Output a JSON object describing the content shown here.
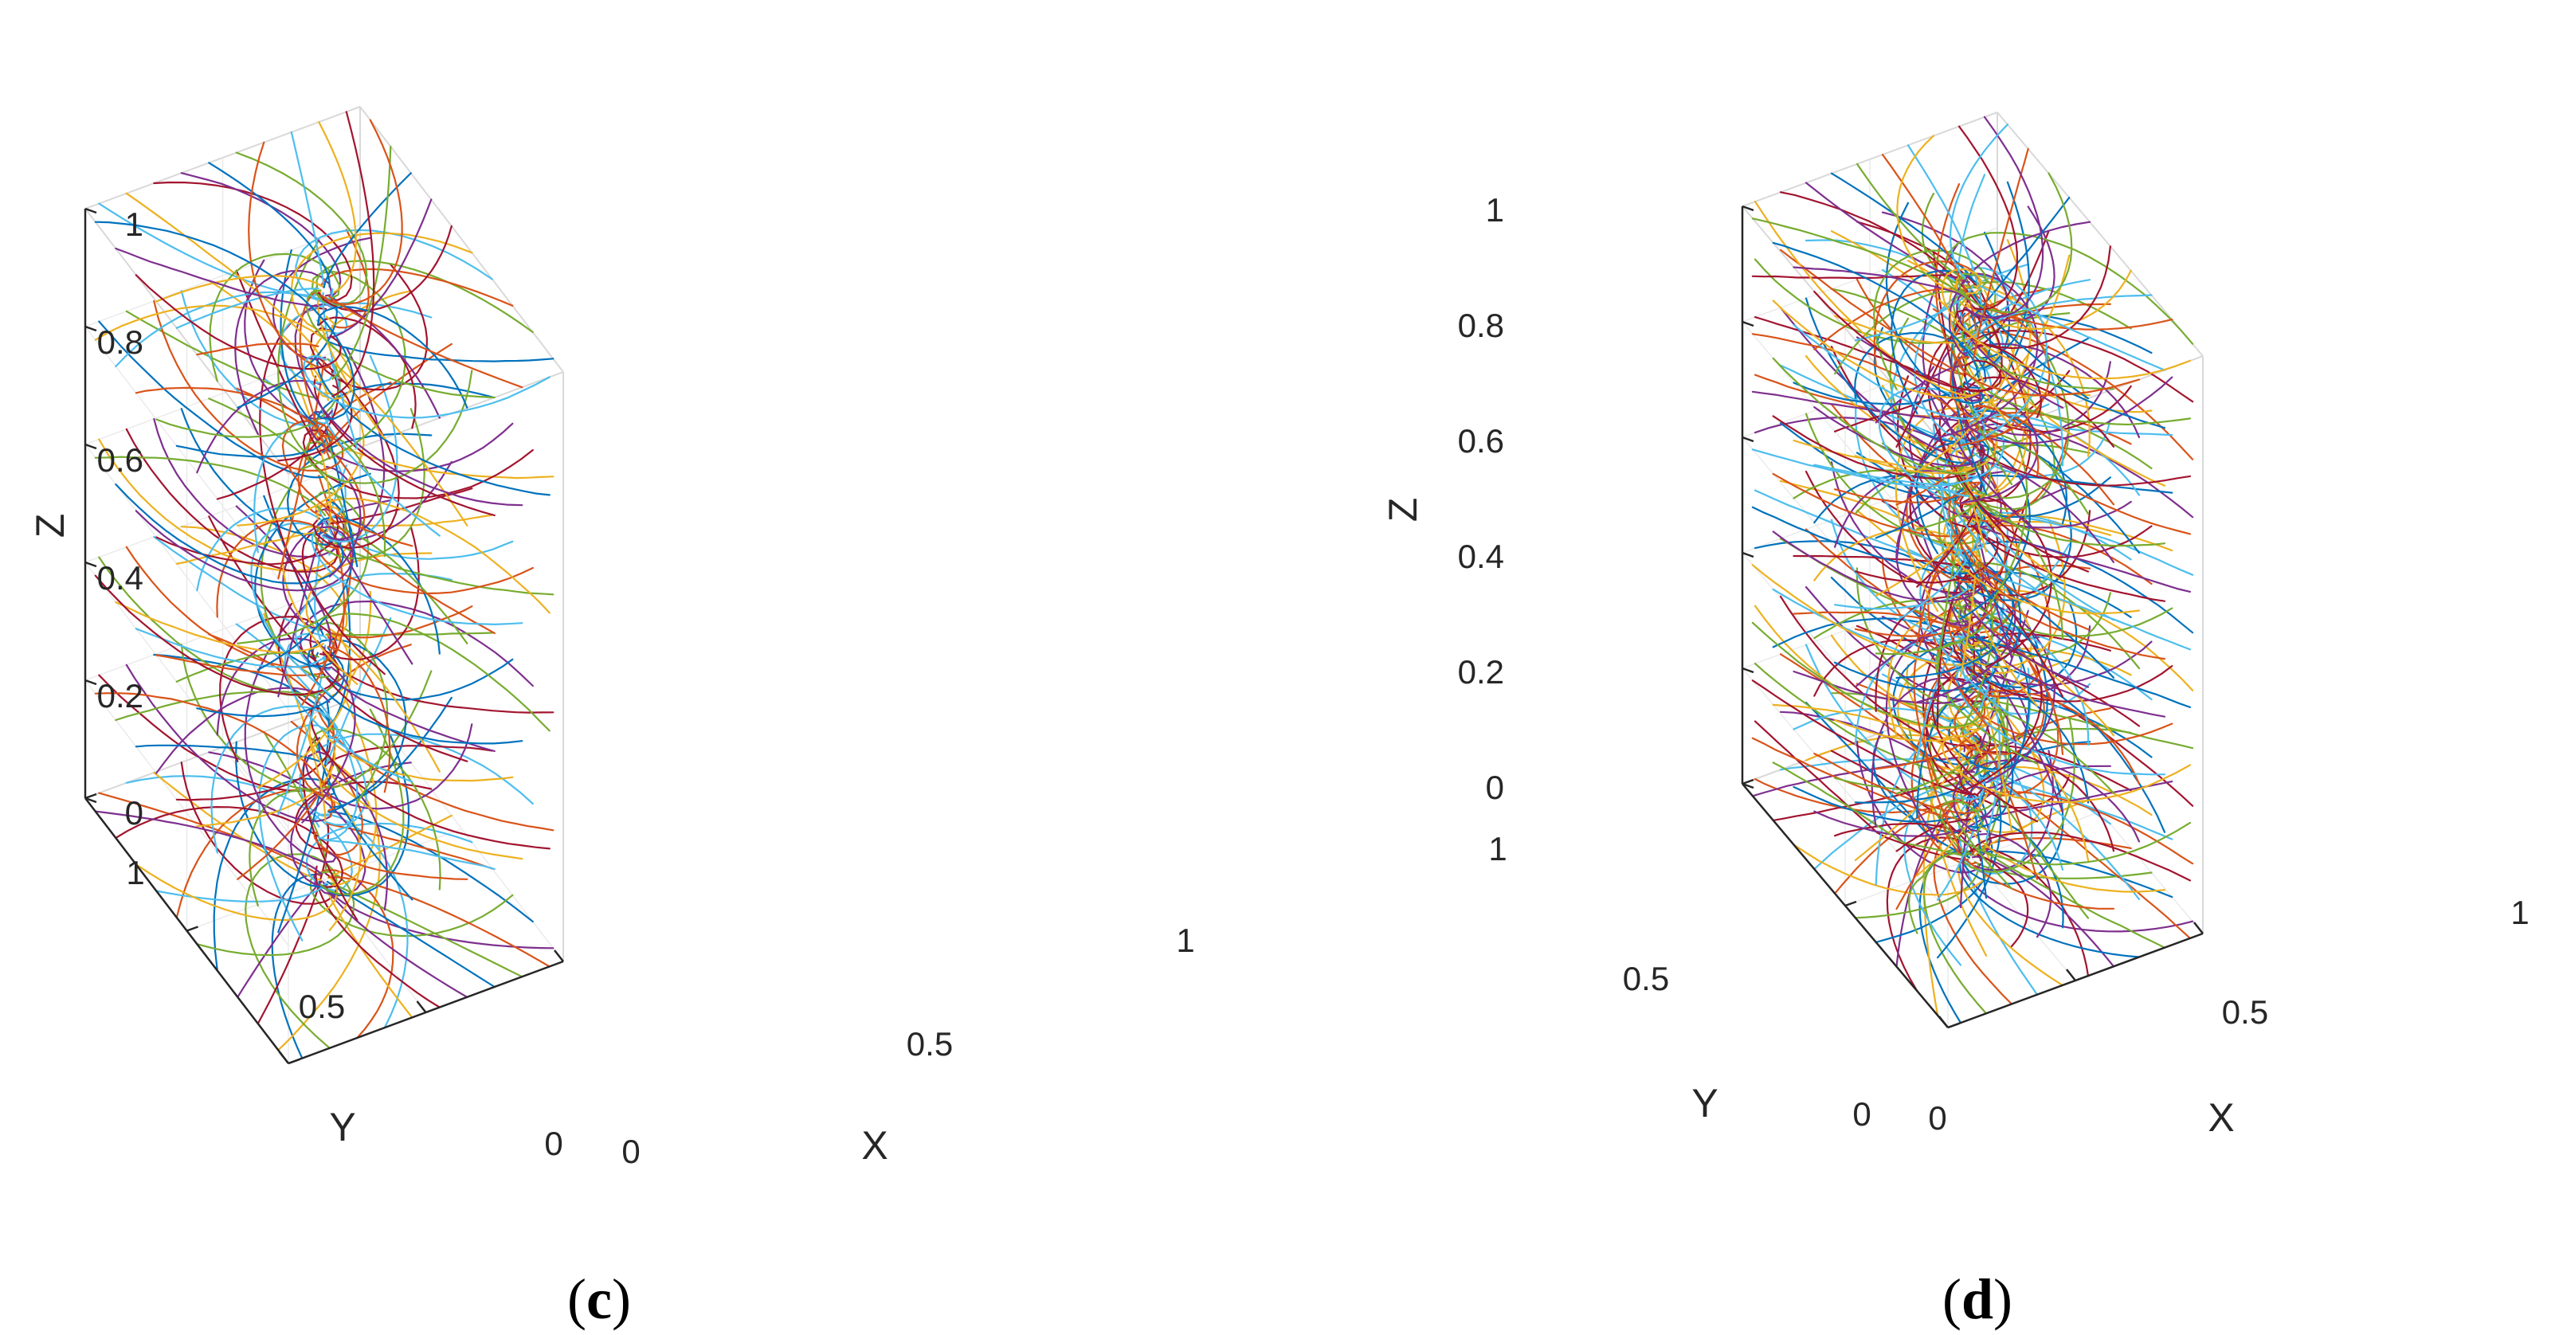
{
  "figure": {
    "panels": [
      {
        "caption": "(c)",
        "caption_parts": {
          "open": "(",
          "letter": "c",
          "close": ")"
        },
        "axis_labels": {
          "x": "X",
          "y": "Y",
          "z": "Z"
        },
        "z_ticks": [
          "0",
          "0.2",
          "0.4",
          "0.6",
          "0.8",
          "1"
        ],
        "x_ticks": [
          "0",
          "0.5",
          "1"
        ],
        "y_ticks": [
          "0",
          "0.5",
          "1"
        ]
      },
      {
        "caption": "(d)",
        "caption_parts": {
          "open": "(",
          "letter": "d",
          "close": ")"
        },
        "axis_labels": {
          "x": "X",
          "y": "Y",
          "z": "Z"
        },
        "z_ticks": [
          "0",
          "0.2",
          "0.4",
          "0.6",
          "0.8",
          "1"
        ],
        "x_ticks": [
          "0",
          "0.5",
          "1"
        ],
        "y_ticks": [
          "0",
          "0.5",
          "1"
        ]
      }
    ]
  },
  "chart_data": [
    {
      "type": "streamline-3d",
      "title": "(c)",
      "xlabel": "X",
      "ylabel": "Y",
      "zlabel": "Z",
      "xlim": [
        0,
        1
      ],
      "ylim": [
        0,
        1
      ],
      "zlim": [
        0,
        1
      ],
      "z_tick_values": [
        0,
        0.2,
        0.4,
        0.6,
        0.8,
        1
      ],
      "x_tick_values": [
        0,
        0.5,
        1
      ],
      "y_tick_values": [
        0,
        0.5,
        1
      ],
      "grid": true,
      "convergence_axis": {
        "x": 0.5,
        "y": 0.5
      },
      "seed_layers_z": [
        0,
        0.2,
        0.4,
        0.6,
        0.8,
        1
      ],
      "seeds_per_edge": 10,
      "colors": [
        "#0072BD",
        "#D95319",
        "#EDB120",
        "#7E2F8E",
        "#77AC30",
        "#4DBEEE",
        "#A2142F"
      ]
    },
    {
      "type": "streamline-3d",
      "title": "(d)",
      "xlabel": "X",
      "ylabel": "Y",
      "zlabel": "Z",
      "xlim": [
        0,
        1
      ],
      "ylim": [
        0,
        1
      ],
      "zlim": [
        0,
        1
      ],
      "z_tick_values": [
        0,
        0.2,
        0.4,
        0.6,
        0.8,
        1
      ],
      "x_tick_values": [
        0,
        0.5,
        1
      ],
      "y_tick_values": [
        0,
        0.5,
        1
      ],
      "grid": true,
      "convergence_axis": {
        "x": 0.5,
        "y": 0.5
      },
      "seed_layers_z": [
        0,
        0.1,
        0.2,
        0.3,
        0.4,
        0.5,
        0.6,
        0.7,
        0.8,
        0.9,
        1
      ],
      "seeds_per_edge": 10,
      "colors": [
        "#0072BD",
        "#D95319",
        "#EDB120",
        "#7E2F8E",
        "#77AC30",
        "#4DBEEE",
        "#A2142F"
      ]
    }
  ]
}
